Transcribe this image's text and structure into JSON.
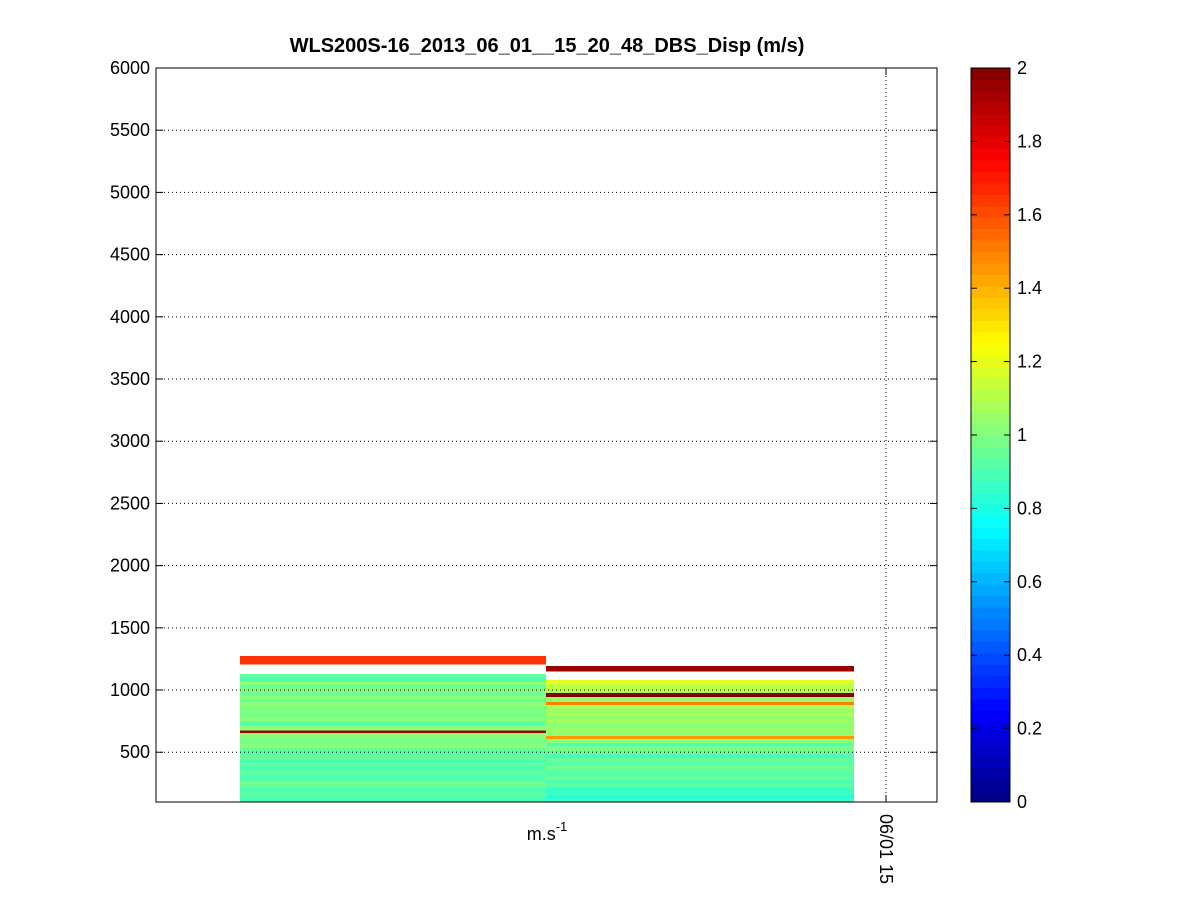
{
  "chart_data": {
    "type": "heatmap",
    "title": "WLS200S-16_2013_06_01__15_20_48_DBS_Disp (m/s)",
    "xlabel": "m.s-1",
    "xlabel_base": "m.s",
    "xlabel_sup": "-1",
    "x_tick_labels": [
      "06/01 15"
    ],
    "ylim": [
      100,
      6000
    ],
    "y_ticks": [
      500,
      1000,
      1500,
      2000,
      2500,
      3000,
      3500,
      4000,
      4500,
      5000,
      5500,
      6000
    ],
    "grid": true,
    "colormap": "jet",
    "clim": [
      0,
      2
    ],
    "colorbar_ticks": [
      0,
      0.2,
      0.4,
      0.6,
      0.8,
      1,
      1.2,
      1.4,
      1.6,
      1.8,
      2
    ],
    "profiles": [
      {
        "cells": [
          {
            "z0": 1205,
            "z1": 1275,
            "v": 1.65
          },
          {
            "z0": 1100,
            "z1": 1130,
            "v": 0.95
          },
          {
            "z0": 1070,
            "z1": 1100,
            "v": 0.9
          },
          {
            "z0": 1045,
            "z1": 1070,
            "v": 1.05
          },
          {
            "z0": 1020,
            "z1": 1045,
            "v": 0.95
          },
          {
            "z0": 990,
            "z1": 1020,
            "v": 1.0
          },
          {
            "z0": 960,
            "z1": 990,
            "v": 0.97
          },
          {
            "z0": 930,
            "z1": 960,
            "v": 1.02
          },
          {
            "z0": 900,
            "z1": 930,
            "v": 0.98
          },
          {
            "z0": 870,
            "z1": 900,
            "v": 1.03
          },
          {
            "z0": 840,
            "z1": 870,
            "v": 0.99
          },
          {
            "z0": 810,
            "z1": 840,
            "v": 1.0
          },
          {
            "z0": 780,
            "z1": 810,
            "v": 0.97
          },
          {
            "z0": 750,
            "z1": 780,
            "v": 1.02
          },
          {
            "z0": 720,
            "z1": 750,
            "v": 0.92
          },
          {
            "z0": 690,
            "z1": 720,
            "v": 1.0
          },
          {
            "z0": 670,
            "z1": 690,
            "v": 1.05
          },
          {
            "z0": 655,
            "z1": 675,
            "v": 1.95
          },
          {
            "z0": 625,
            "z1": 655,
            "v": 1.02
          },
          {
            "z0": 595,
            "z1": 625,
            "v": 1.0
          },
          {
            "z0": 565,
            "z1": 595,
            "v": 0.97
          },
          {
            "z0": 535,
            "z1": 565,
            "v": 1.02
          },
          {
            "z0": 505,
            "z1": 535,
            "v": 0.95
          },
          {
            "z0": 475,
            "z1": 505,
            "v": 0.92
          },
          {
            "z0": 445,
            "z1": 475,
            "v": 0.95
          },
          {
            "z0": 415,
            "z1": 445,
            "v": 0.9
          },
          {
            "z0": 385,
            "z1": 415,
            "v": 0.93
          },
          {
            "z0": 355,
            "z1": 385,
            "v": 0.9
          },
          {
            "z0": 325,
            "z1": 355,
            "v": 0.95
          },
          {
            "z0": 295,
            "z1": 325,
            "v": 0.92
          },
          {
            "z0": 265,
            "z1": 295,
            "v": 0.9
          },
          {
            "z0": 235,
            "z1": 265,
            "v": 0.98
          },
          {
            "z0": 205,
            "z1": 235,
            "v": 0.92
          },
          {
            "z0": 175,
            "z1": 205,
            "v": 0.9
          },
          {
            "z0": 145,
            "z1": 175,
            "v": 0.93
          },
          {
            "z0": 100,
            "z1": 145,
            "v": 0.9
          }
        ]
      },
      {
        "cells": [
          {
            "z0": 1150,
            "z1": 1195,
            "v": 1.95
          },
          {
            "z0": 1050,
            "z1": 1080,
            "v": 1.2
          },
          {
            "z0": 1010,
            "z1": 1050,
            "v": 1.12
          },
          {
            "z0": 975,
            "z1": 1010,
            "v": 1.1
          },
          {
            "z0": 945,
            "z1": 975,
            "v": 2.0
          },
          {
            "z0": 905,
            "z1": 945,
            "v": 1.05
          },
          {
            "z0": 880,
            "z1": 905,
            "v": 1.5
          },
          {
            "z0": 850,
            "z1": 880,
            "v": 1.08
          },
          {
            "z0": 820,
            "z1": 850,
            "v": 1.05
          },
          {
            "z0": 790,
            "z1": 820,
            "v": 1.08
          },
          {
            "z0": 760,
            "z1": 790,
            "v": 1.03
          },
          {
            "z0": 730,
            "z1": 760,
            "v": 1.06
          },
          {
            "z0": 700,
            "z1": 730,
            "v": 1.02
          },
          {
            "z0": 670,
            "z1": 700,
            "v": 1.05
          },
          {
            "z0": 640,
            "z1": 670,
            "v": 1.03
          },
          {
            "z0": 605,
            "z1": 630,
            "v": 1.45
          },
          {
            "z0": 630,
            "z1": 640,
            "v": 1.05
          },
          {
            "z0": 575,
            "z1": 605,
            "v": 1.0
          },
          {
            "z0": 545,
            "z1": 575,
            "v": 0.92
          },
          {
            "z0": 515,
            "z1": 545,
            "v": 1.0
          },
          {
            "z0": 485,
            "z1": 515,
            "v": 0.95
          },
          {
            "z0": 455,
            "z1": 485,
            "v": 0.9
          },
          {
            "z0": 425,
            "z1": 455,
            "v": 0.95
          },
          {
            "z0": 395,
            "z1": 425,
            "v": 0.92
          },
          {
            "z0": 365,
            "z1": 395,
            "v": 0.97
          },
          {
            "z0": 335,
            "z1": 365,
            "v": 0.93
          },
          {
            "z0": 305,
            "z1": 335,
            "v": 0.9
          },
          {
            "z0": 275,
            "z1": 305,
            "v": 0.96
          },
          {
            "z0": 245,
            "z1": 275,
            "v": 0.9
          },
          {
            "z0": 215,
            "z1": 245,
            "v": 0.93
          },
          {
            "z0": 185,
            "z1": 215,
            "v": 0.85
          },
          {
            "z0": 155,
            "z1": 185,
            "v": 0.88
          },
          {
            "z0": 125,
            "z1": 155,
            "v": 0.82
          },
          {
            "z0": 100,
            "z1": 125,
            "v": 0.88
          }
        ]
      }
    ]
  }
}
